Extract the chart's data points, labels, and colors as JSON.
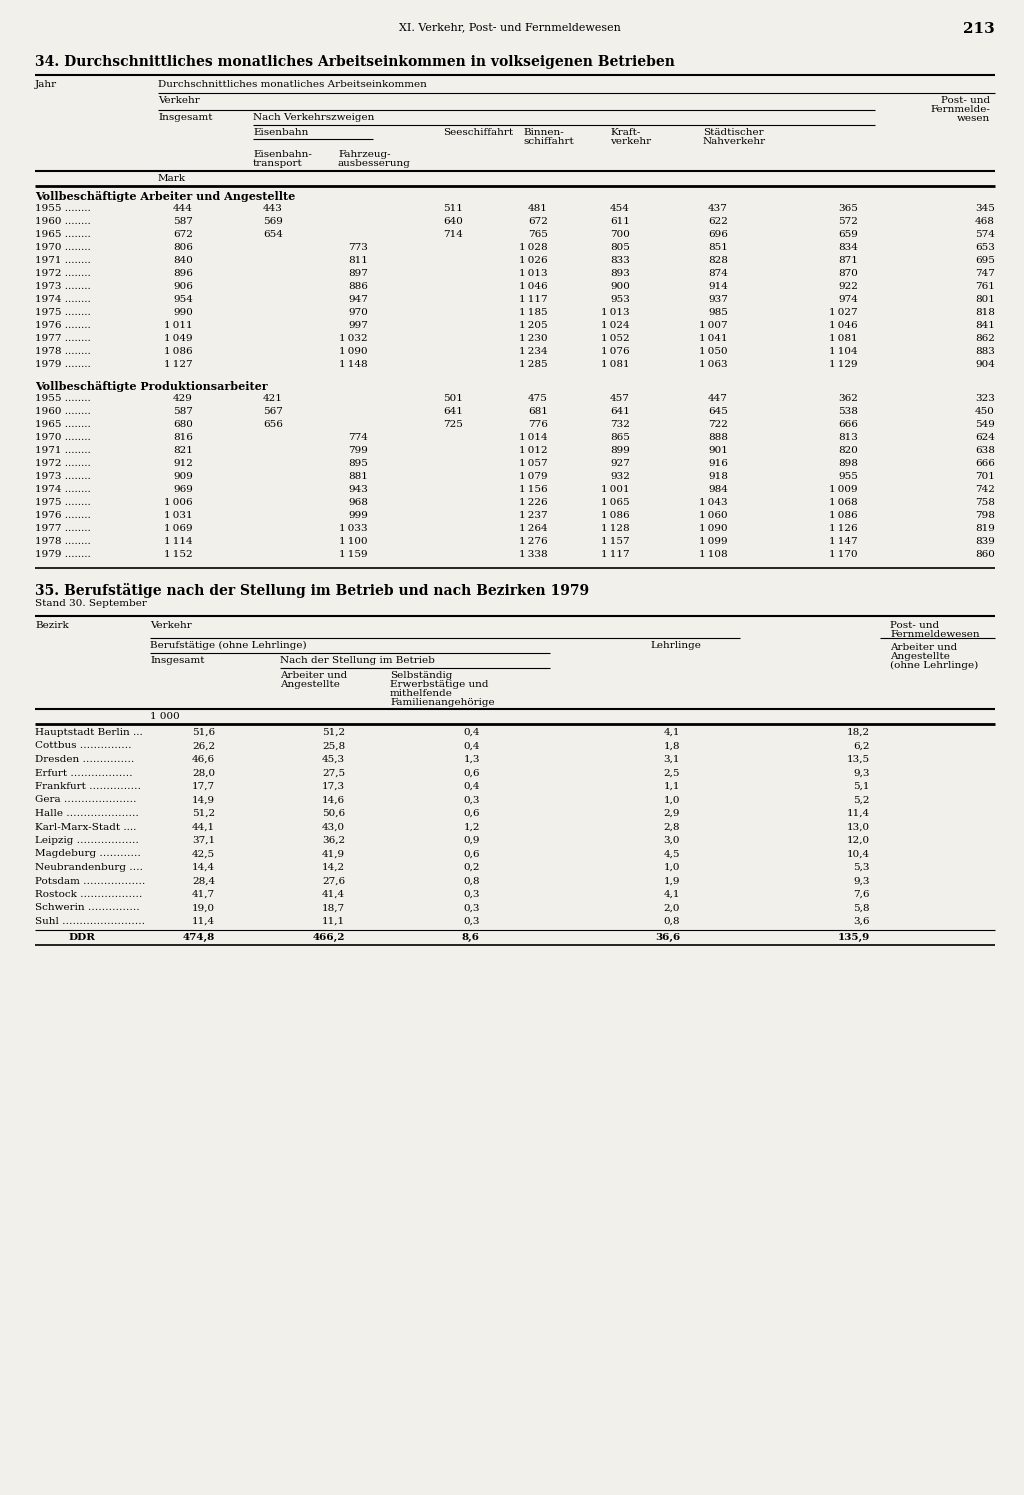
{
  "page_header": "XI. Verkehr, Post- und Fernmeldewesen",
  "page_number": "213",
  "section34_title": "34. Durchschnittliches monatliches Arbeitseinkommen in volkseigenen Betrieben",
  "section35_title": "35. Berufstätige nach der Stellung im Betrieb und nach Bezirken 1979",
  "section35_subtitle": "Stand 30. September",
  "section_vollbesch": "Vollbeschäftigte Arbeiter und Angestellte",
  "section_prod": "Vollbeschäftigte Produktionsarbeiter",
  "table1_data": [
    [
      "1955",
      "444",
      "443",
      "",
      "511",
      "481",
      "454",
      "437",
      "365",
      "345"
    ],
    [
      "1960",
      "587",
      "569",
      "",
      "640",
      "672",
      "611",
      "622",
      "572",
      "468"
    ],
    [
      "1965",
      "672",
      "654",
      "",
      "714",
      "765",
      "700",
      "696",
      "659",
      "574"
    ],
    [
      "1970",
      "806",
      "",
      "773",
      "",
      "1 028",
      "805",
      "851",
      "834",
      "653"
    ],
    [
      "1971",
      "840",
      "",
      "811",
      "",
      "1 026",
      "833",
      "828",
      "871",
      "695"
    ],
    [
      "1972",
      "896",
      "",
      "897",
      "",
      "1 013",
      "893",
      "874",
      "870",
      "747"
    ],
    [
      "1973",
      "906",
      "",
      "886",
      "",
      "1 046",
      "900",
      "914",
      "922",
      "761"
    ],
    [
      "1974",
      "954",
      "",
      "947",
      "",
      "1 117",
      "953",
      "937",
      "974",
      "801"
    ],
    [
      "1975",
      "990",
      "",
      "970",
      "",
      "1 185",
      "1 013",
      "985",
      "1 027",
      "818"
    ],
    [
      "1976",
      "1 011",
      "",
      "997",
      "",
      "1 205",
      "1 024",
      "1 007",
      "1 046",
      "841"
    ],
    [
      "1977",
      "1 049",
      "",
      "1 032",
      "",
      "1 230",
      "1 052",
      "1 041",
      "1 081",
      "862"
    ],
    [
      "1978",
      "1 086",
      "",
      "1 090",
      "",
      "1 234",
      "1 076",
      "1 050",
      "1 104",
      "883"
    ],
    [
      "1979",
      "1 127",
      "",
      "1 148",
      "",
      "1 285",
      "1 081",
      "1 063",
      "1 129",
      "904"
    ]
  ],
  "table2_data": [
    [
      "1955",
      "429",
      "421",
      "",
      "501",
      "475",
      "457",
      "447",
      "362",
      "323"
    ],
    [
      "1960",
      "587",
      "567",
      "",
      "641",
      "681",
      "641",
      "645",
      "538",
      "450"
    ],
    [
      "1965",
      "680",
      "656",
      "",
      "725",
      "776",
      "732",
      "722",
      "666",
      "549"
    ],
    [
      "1970",
      "816",
      "",
      "774",
      "",
      "1 014",
      "865",
      "888",
      "813",
      "624"
    ],
    [
      "1971",
      "821",
      "",
      "799",
      "",
      "1 012",
      "899",
      "901",
      "820",
      "638"
    ],
    [
      "1972",
      "912",
      "",
      "895",
      "",
      "1 057",
      "927",
      "916",
      "898",
      "666"
    ],
    [
      "1973",
      "909",
      "",
      "881",
      "",
      "1 079",
      "932",
      "918",
      "955",
      "701"
    ],
    [
      "1974",
      "969",
      "",
      "943",
      "",
      "1 156",
      "1 001",
      "984",
      "1 009",
      "742"
    ],
    [
      "1975",
      "1 006",
      "",
      "968",
      "",
      "1 226",
      "1 065",
      "1 043",
      "1 068",
      "758"
    ],
    [
      "1976",
      "1 031",
      "",
      "999",
      "",
      "1 237",
      "1 086",
      "1 060",
      "1 086",
      "798"
    ],
    [
      "1977",
      "1 069",
      "",
      "1 033",
      "",
      "1 264",
      "1 128",
      "1 090",
      "1 126",
      "819"
    ],
    [
      "1978",
      "1 114",
      "",
      "1 100",
      "",
      "1 276",
      "1 157",
      "1 099",
      "1 147",
      "839"
    ],
    [
      "1979",
      "1 152",
      "",
      "1 159",
      "",
      "1 338",
      "1 117",
      "1 108",
      "1 170",
      "860"
    ]
  ],
  "bezirk_data": [
    [
      "Hauptstadt Berlin ...",
      "51,6",
      "51,2",
      "0,4",
      "4,1",
      "18,2"
    ],
    [
      "Cottbus ……………",
      "26,2",
      "25,8",
      "0,4",
      "1,8",
      "6,2"
    ],
    [
      "Dresden ……………",
      "46,6",
      "45,3",
      "1,3",
      "3,1",
      "13,5"
    ],
    [
      "Erfurt ………………",
      "28,0",
      "27,5",
      "0,6",
      "2,5",
      "9,3"
    ],
    [
      "Frankfurt ……………",
      "17,7",
      "17,3",
      "0,4",
      "1,1",
      "5,1"
    ],
    [
      "Gera …………………",
      "14,9",
      "14,6",
      "0,3",
      "1,0",
      "5,2"
    ],
    [
      "Halle …………………",
      "51,2",
      "50,6",
      "0,6",
      "2,9",
      "11,4"
    ],
    [
      "Karl-Marx-Stadt ....",
      "44,1",
      "43,0",
      "1,2",
      "2,8",
      "13,0"
    ],
    [
      "Leipzig ………………",
      "37,1",
      "36,2",
      "0,9",
      "3,0",
      "12,0"
    ],
    [
      "Magdeburg …………",
      "42,5",
      "41,9",
      "0,6",
      "4,5",
      "10,4"
    ],
    [
      "Neubrandenburg ….",
      "14,4",
      "14,2",
      "0,2",
      "1,0",
      "5,3"
    ],
    [
      "Potsdam ………………",
      "28,4",
      "27,6",
      "0,8",
      "1,9",
      "9,3"
    ],
    [
      "Rostock ………………",
      "41,7",
      "41,4",
      "0,3",
      "4,1",
      "7,6"
    ],
    [
      "Schwerin ……………",
      "19,0",
      "18,7",
      "0,3",
      "2,0",
      "5,8"
    ],
    [
      "Suhl ……………………",
      "11,4",
      "11,1",
      "0,3",
      "0,8",
      "3,6"
    ]
  ],
  "bezirk_total": [
    "474,8",
    "466,2",
    "8,6",
    "36,6",
    "135,9"
  ],
  "bg_color": "#f2f0eb"
}
